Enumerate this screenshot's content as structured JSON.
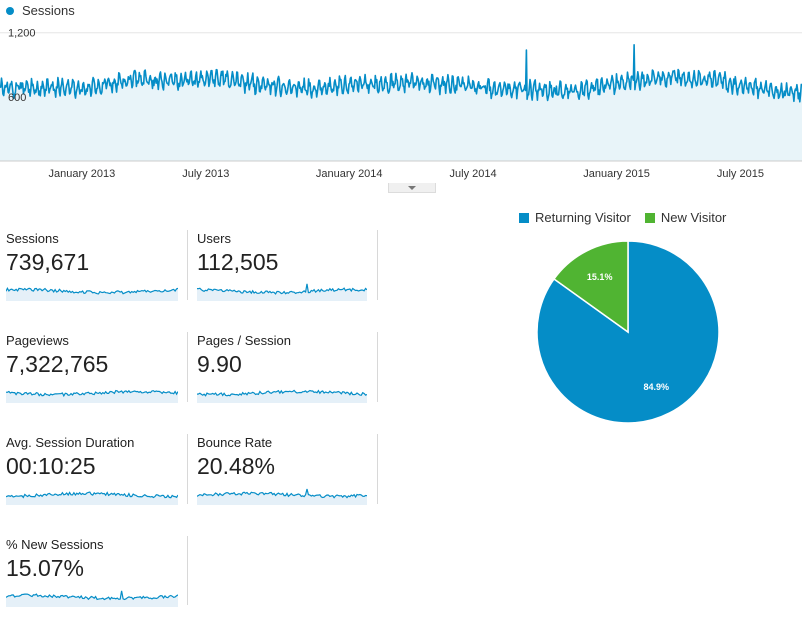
{
  "legend": {
    "series_label": "Sessions",
    "color": "#058dc7"
  },
  "chart_data": [
    {
      "type": "line",
      "series": [
        {
          "name": "Sessions"
        }
      ],
      "y_tick_labels": [
        "1,200",
        "600"
      ],
      "y_ticks": [
        1200,
        600
      ],
      "x_tick_labels": [
        "January 2013",
        "July 2013",
        "January 2014",
        "July 2014",
        "January 2015",
        "July 2015"
      ],
      "ylim": [
        0,
        1300
      ],
      "x": [
        "2012-11",
        "2013-01",
        "2013-03",
        "2013-05",
        "2013-07",
        "2013-09",
        "2013-11",
        "2014-01",
        "2014-03",
        "2014-05",
        "2014-07",
        "2014-09",
        "2014-11",
        "2015-01",
        "2015-03",
        "2015-05",
        "2015-07",
        "2015-09",
        "2015-11"
      ],
      "values": [
        690,
        680,
        690,
        760,
        740,
        770,
        700,
        680,
        720,
        730,
        720,
        680,
        660,
        660,
        740,
        780,
        760,
        680,
        640
      ],
      "colors": {
        "line": "#058dc7",
        "fill": "#e8f4f9"
      }
    },
    {
      "type": "pie",
      "categories": [
        "Returning Visitor",
        "New Visitor"
      ],
      "values": [
        84.9,
        15.1
      ],
      "labels": [
        "84.9%",
        "15.1%"
      ],
      "colors": [
        "#058dc7",
        "#50b432"
      ]
    }
  ],
  "metrics": [
    {
      "label": "Sessions",
      "value": "739,671"
    },
    {
      "label": "Users",
      "value": "112,505"
    },
    {
      "label": "Pageviews",
      "value": "7,322,765"
    },
    {
      "label": "Pages / Session",
      "value": "9.90"
    },
    {
      "label": "Avg. Session Duration",
      "value": "00:10:25"
    },
    {
      "label": "Bounce Rate",
      "value": "20.48%"
    },
    {
      "label": "% New Sessions",
      "value": "15.07%"
    }
  ]
}
